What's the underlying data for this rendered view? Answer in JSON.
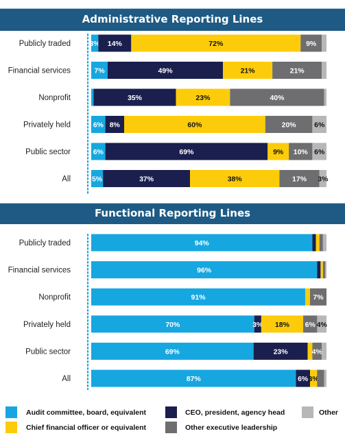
{
  "colors": {
    "audit": "#16a7e0",
    "ceo": "#1b1f4e",
    "cfo": "#fccc0a",
    "exec": "#6e6e70",
    "other": "#b7b7b8",
    "header": "#1e5a84"
  },
  "legend": [
    {
      "key": "audit",
      "label": "Audit committee, board, equivalent"
    },
    {
      "key": "ceo",
      "label": "CEO, president, agency head"
    },
    {
      "key": "other",
      "label": "Other"
    },
    {
      "key": "cfo",
      "label": "Chief financial officer or equivalent"
    },
    {
      "key": "exec",
      "label": "Other executive leadership"
    }
  ],
  "chart_data": [
    {
      "type": "bar",
      "orientation": "horizontal",
      "stacked": true,
      "title": "Administrative Reporting Lines",
      "categories": [
        "Publicly traded",
        "Financial services",
        "Nonprofit",
        "Privately held",
        "Public sector",
        "All"
      ],
      "series": [
        {
          "name": "Audit committee, board, equivalent",
          "key": "audit",
          "values": [
            3,
            7,
            1,
            6,
            6,
            5
          ],
          "labels": [
            "3%",
            "7%",
            "",
            "6%",
            "6%",
            "5%"
          ]
        },
        {
          "name": "CEO, president, agency head",
          "key": "ceo",
          "values": [
            14,
            49,
            35,
            8,
            69,
            37
          ],
          "labels": [
            "14%",
            "49%",
            "35%",
            "8%",
            "69%",
            "37%"
          ]
        },
        {
          "name": "Chief financial officer or equivalent",
          "key": "cfo",
          "values": [
            72,
            21,
            23,
            60,
            9,
            38
          ],
          "labels": [
            "72%",
            "21%",
            "23%",
            "60%",
            "9%",
            "38%"
          ]
        },
        {
          "name": "Other executive leadership",
          "key": "exec",
          "values": [
            9,
            21,
            40,
            20,
            10,
            17
          ],
          "labels": [
            "9%",
            "21%",
            "40%",
            "20%",
            "10%",
            "17%"
          ]
        },
        {
          "name": "Other",
          "key": "other",
          "values": [
            2,
            2,
            1,
            6,
            6,
            3
          ],
          "labels": [
            "",
            "",
            "",
            "6%",
            "6%",
            "3%"
          ]
        }
      ]
    },
    {
      "type": "bar",
      "orientation": "horizontal",
      "stacked": true,
      "title": "Functional Reporting Lines",
      "categories": [
        "Publicly traded",
        "Financial services",
        "Nonprofit",
        "Privately held",
        "Public sector",
        "All"
      ],
      "series": [
        {
          "name": "Audit committee, board, equivalent",
          "key": "audit",
          "values": [
            94,
            96,
            91,
            70,
            69,
            87
          ],
          "labels": [
            "94%",
            "96%",
            "91%",
            "70%",
            "69%",
            "87%"
          ]
        },
        {
          "name": "CEO, president, agency head",
          "key": "ceo",
          "values": [
            1.5,
            1.5,
            0,
            3,
            23,
            6
          ],
          "labels": [
            "",
            "",
            "",
            "3%",
            "23%",
            "6%"
          ]
        },
        {
          "name": "Chief financial officer or equivalent",
          "key": "cfo",
          "values": [
            1.5,
            1,
            2,
            18,
            2,
            3
          ],
          "labels": [
            "",
            "",
            "",
            "18%",
            "",
            "3%"
          ]
        },
        {
          "name": "Other executive leadership",
          "key": "exec",
          "values": [
            1.5,
            1,
            7,
            6,
            4,
            3
          ],
          "labels": [
            "",
            "",
            "7%",
            "6%",
            "4%",
            ""
          ]
        },
        {
          "name": "Other",
          "key": "other",
          "values": [
            1.5,
            0.5,
            0,
            4,
            2,
            1
          ],
          "labels": [
            "",
            "",
            "",
            "4%",
            "",
            ""
          ]
        }
      ]
    }
  ]
}
